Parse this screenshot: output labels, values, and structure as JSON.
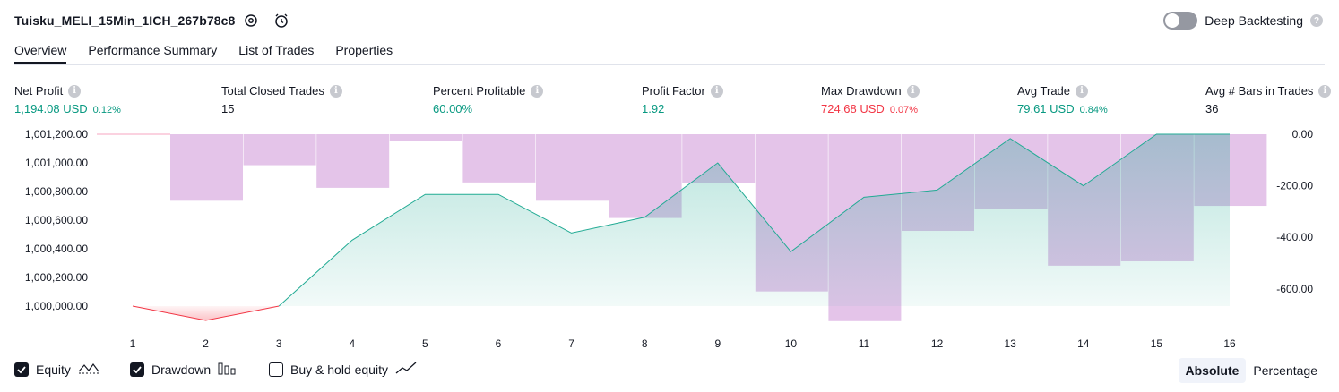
{
  "header": {
    "title": "Tuisku_MELI_15Min_1ICH_267b78c8",
    "deep_backtesting_label": "Deep Backtesting",
    "help_glyph": "?"
  },
  "tabs": [
    {
      "label": "Overview",
      "active": true
    },
    {
      "label": "Performance Summary",
      "active": false
    },
    {
      "label": "List of Trades",
      "active": false
    },
    {
      "label": "Properties",
      "active": false
    }
  ],
  "metrics": {
    "info_glyph": "i",
    "net_profit": {
      "label": "Net Profit",
      "value": "1,194.08 USD",
      "pct": "0.12%"
    },
    "total_closed_trades": {
      "label": "Total Closed Trades",
      "value": "15"
    },
    "percent_profitable": {
      "label": "Percent Profitable",
      "value": "60.00%"
    },
    "profit_factor": {
      "label": "Profit Factor",
      "value": "1.92"
    },
    "max_drawdown": {
      "label": "Max Drawdown",
      "value": "724.68 USD",
      "pct": "0.07%"
    },
    "avg_trade": {
      "label": "Avg Trade",
      "value": "79.61 USD",
      "pct": "0.84%"
    },
    "avg_bars": {
      "label": "Avg # Bars in Trades",
      "value": "36"
    }
  },
  "colors": {
    "positive": "#089981",
    "negative": "#f23645",
    "equity_line": "#22ab94",
    "drawdown_bar": "#e1bee7"
  },
  "chart_data": {
    "type": "line",
    "x": [
      1,
      2,
      3,
      4,
      5,
      6,
      7,
      8,
      9,
      10,
      11,
      12,
      13,
      14,
      15,
      16
    ],
    "left_ticks": [
      "1,001,200.00",
      "1,001,000.00",
      "1,000,800.00",
      "1,000,600.00",
      "1,000,400.00",
      "1,000,200.00",
      "1,000,000.00"
    ],
    "right_ticks": [
      "0.00",
      "-200.00",
      "-400.00",
      "-600.00"
    ],
    "x_ticks": [
      "1",
      "2",
      "3",
      "4",
      "5",
      "6",
      "7",
      "8",
      "9",
      "10",
      "11",
      "12",
      "13",
      "14",
      "15",
      "16"
    ],
    "ylim_left": [
      1000000,
      1001200
    ],
    "ylim_right": [
      -666.7,
      0
    ],
    "series": [
      {
        "name": "Equity",
        "axis": "left",
        "values": [
          1000000,
          999900,
          1000000,
          1000460,
          1000780,
          1000780,
          1000510,
          1000620,
          1001000,
          1000380,
          1000760,
          1000810,
          1001170,
          1000840,
          1001200,
          1001200
        ]
      },
      {
        "name": "Drawdown",
        "axis": "right",
        "kind": "bar",
        "values": [
          0,
          -258,
          -120,
          -208,
          -25,
          -187,
          -258,
          -325,
          -190,
          -610,
          -725,
          -375,
          -290,
          -510,
          -493,
          -278
        ]
      }
    ]
  },
  "legend": {
    "equity": {
      "label": "Equity",
      "checked": true
    },
    "drawdown": {
      "label": "Drawdown",
      "checked": true
    },
    "buy_hold": {
      "label": "Buy & hold equity",
      "checked": false
    }
  },
  "view_toggle": {
    "absolute": "Absolute",
    "percentage": "Percentage",
    "selected": "absolute"
  }
}
